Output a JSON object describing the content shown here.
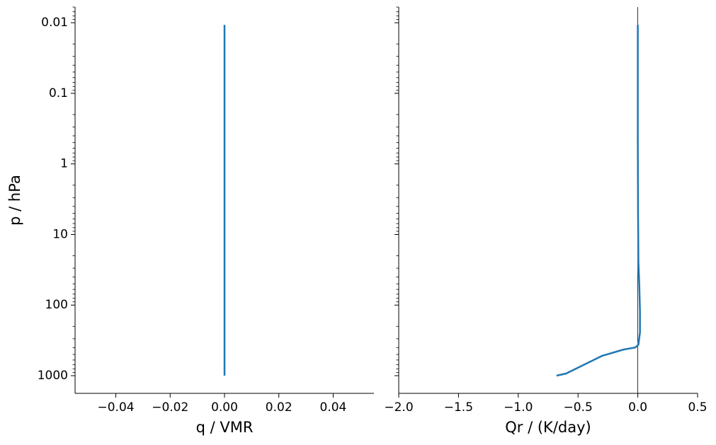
{
  "chart_data": [
    {
      "type": "line",
      "xlabel": "q / VMR",
      "ylabel": "p / hPa",
      "log_y": true,
      "color": "#1f77b4",
      "show_ytick_labels": true,
      "xlim": [
        -0.055,
        0.055
      ],
      "xticks": [
        {
          "value": -0.04,
          "label": "−0.04"
        },
        {
          "value": -0.02,
          "label": "−0.02"
        },
        {
          "value": 0,
          "label": "0.00"
        },
        {
          "value": 0.02,
          "label": "0.02"
        },
        {
          "value": 0.04,
          "label": "0.04"
        }
      ],
      "ylim": [
        1780,
        0.006
      ],
      "yticks": [
        0.01,
        0.1,
        1,
        10,
        100,
        1000
      ],
      "y": [
        1000,
        0.0107
      ],
      "values": [
        0,
        0
      ]
    },
    {
      "type": "line",
      "xlabel": "Qr / (K/day)",
      "log_y": true,
      "color": "#1f77b4",
      "show_ytick_labels": false,
      "vline": 0,
      "xlim": [
        -2,
        0.5
      ],
      "xticks": [
        {
          "value": -2,
          "label": "−2.0"
        },
        {
          "value": -1.5,
          "label": "−1.5"
        },
        {
          "value": -1,
          "label": "−1.0"
        },
        {
          "value": -0.5,
          "label": "−0.5"
        },
        {
          "value": 0,
          "label": "0.0"
        },
        {
          "value": 0.5,
          "label": "0.5"
        }
      ],
      "ylim": [
        1780,
        0.006
      ],
      "yticks": [
        0.01,
        0.1,
        1,
        10,
        100,
        1000
      ],
      "y": [
        1000,
        933,
        741,
        525,
        427,
        398,
        363,
        245,
        123,
        49,
        24.5,
        4.9,
        0.49,
        0.0107
      ],
      "values": [
        -0.68,
        -0.6,
        -0.48,
        -0.3,
        -0.12,
        -0.02,
        0.005,
        0.018,
        0.018,
        0.012,
        0.005,
        0.002,
        0,
        0
      ]
    }
  ]
}
